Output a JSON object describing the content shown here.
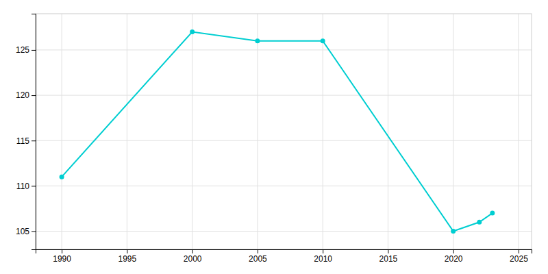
{
  "chart_data": {
    "type": "line",
    "x": [
      1990,
      2000,
      2005,
      2010,
      2020,
      2022,
      2023
    ],
    "values": [
      111,
      127,
      126,
      126,
      105,
      106,
      107
    ],
    "color": "#00CED1",
    "marker": "circle",
    "xlim": [
      1988,
      2026
    ],
    "ylim": [
      103,
      129
    ],
    "xticks": [
      1990,
      1995,
      2000,
      2005,
      2010,
      2015,
      2020,
      2025
    ],
    "yticks": [
      105,
      110,
      115,
      120,
      125
    ],
    "grid": true
  }
}
